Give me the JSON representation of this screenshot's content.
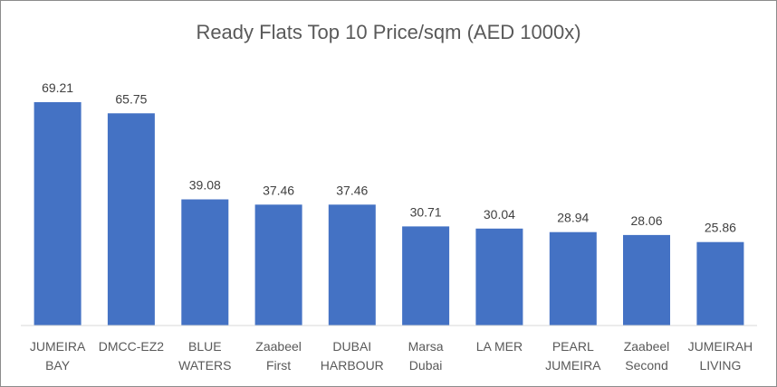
{
  "chart_data": {
    "type": "bar",
    "title": "Ready Flats Top 10 Price/sqm (AED 1000x)",
    "categories": [
      [
        "JUMEIRA",
        "BAY"
      ],
      [
        "DMCC-EZ2"
      ],
      [
        "BLUE",
        "WATERS"
      ],
      [
        "Zaabeel",
        "First"
      ],
      [
        "DUBAI",
        "HARBOUR"
      ],
      [
        "Marsa",
        "Dubai"
      ],
      [
        "LA MER"
      ],
      [
        "PEARL",
        "JUMEIRA"
      ],
      [
        "Zaabeel",
        "Second"
      ],
      [
        "JUMEIRAH",
        "LIVING"
      ]
    ],
    "values": [
      69.21,
      65.75,
      39.08,
      37.46,
      37.46,
      30.71,
      30.04,
      28.94,
      28.06,
      25.86
    ],
    "value_labels": [
      "69.21",
      "65.75",
      "39.08",
      "37.46",
      "37.46",
      "30.71",
      "30.04",
      "28.94",
      "28.06",
      "25.86"
    ],
    "ylim": [
      0,
      69.21
    ],
    "bar_color": "#4472C4",
    "axis_color": "#d9d9d9",
    "grid": false,
    "legend": "none"
  }
}
